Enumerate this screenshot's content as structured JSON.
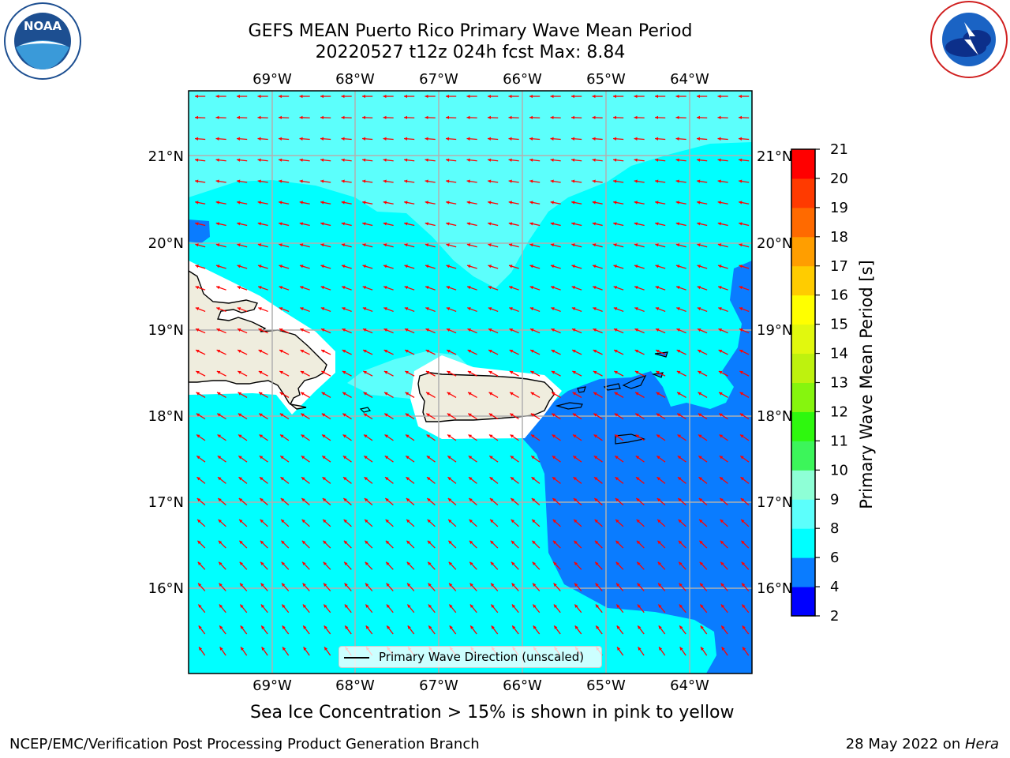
{
  "header": {
    "title_line1": "GEFS MEAN Puerto Rico Primary Wave Mean Period",
    "title_line2": "20220527 t12z 024h fcst   Max: 8.84"
  },
  "logos": {
    "noaa": "NOAA",
    "noaa_ring": "NATIONAL OCEANIC AND ATMOSPHERIC ADMINISTRATION · U.S. DEPARTMENT OF COMMERCE",
    "nws_ring": "NATIONAL WEATHER SERVICE"
  },
  "map": {
    "lon_labels": [
      "69°W",
      "68°W",
      "67°W",
      "66°W",
      "65°W",
      "64°W"
    ],
    "lat_labels": [
      "21°N",
      "20°N",
      "19°N",
      "18°N",
      "17°N",
      "16°N"
    ],
    "legend_label": "Primary Wave Direction (unscaled)",
    "colors": {
      "land": "#efedde",
      "period_4_6": "#0a7cff",
      "period_6_8": "#00ffff",
      "period_8_9": "#5cfffc",
      "ice_free_pink": "#ffffff",
      "arrow": "#ff0000",
      "grid": "#b0b0b0"
    }
  },
  "colorbar": {
    "title": "Primary Wave Mean Period [s]",
    "ticks": [
      "2",
      "4",
      "6",
      "8",
      "9",
      "10",
      "11",
      "12",
      "13",
      "14",
      "15",
      "16",
      "17",
      "18",
      "19",
      "20",
      "21"
    ],
    "segments": [
      {
        "range": "2-4",
        "color": "#0000ff"
      },
      {
        "range": "4-6",
        "color": "#0a7cff"
      },
      {
        "range": "6-8",
        "color": "#00ffff"
      },
      {
        "range": "8-9",
        "color": "#5cfffc"
      },
      {
        "range": "9-10",
        "color": "#8effd6"
      },
      {
        "range": "10-11",
        "color": "#3cf55a"
      },
      {
        "range": "11-12",
        "color": "#2ef80e"
      },
      {
        "range": "12-13",
        "color": "#86f50e"
      },
      {
        "range": "13-14",
        "color": "#bef20e"
      },
      {
        "range": "14-15",
        "color": "#e1f80e"
      },
      {
        "range": "15-16",
        "color": "#ffff00"
      },
      {
        "range": "16-17",
        "color": "#ffcc00"
      },
      {
        "range": "17-18",
        "color": "#ff9e00"
      },
      {
        "range": "18-19",
        "color": "#ff6a00"
      },
      {
        "range": "19-20",
        "color": "#ff3a00"
      },
      {
        "range": "20-21",
        "color": "#ff0000"
      }
    ]
  },
  "notes": {
    "sea_ice": "Sea Ice Concentration > 15% is shown in pink to yellow"
  },
  "footer": {
    "left": "NCEP/EMC/Verification Post Processing Product Generation Branch",
    "right_prefix": "28 May 2022 on ",
    "right_host": "Hera"
  }
}
